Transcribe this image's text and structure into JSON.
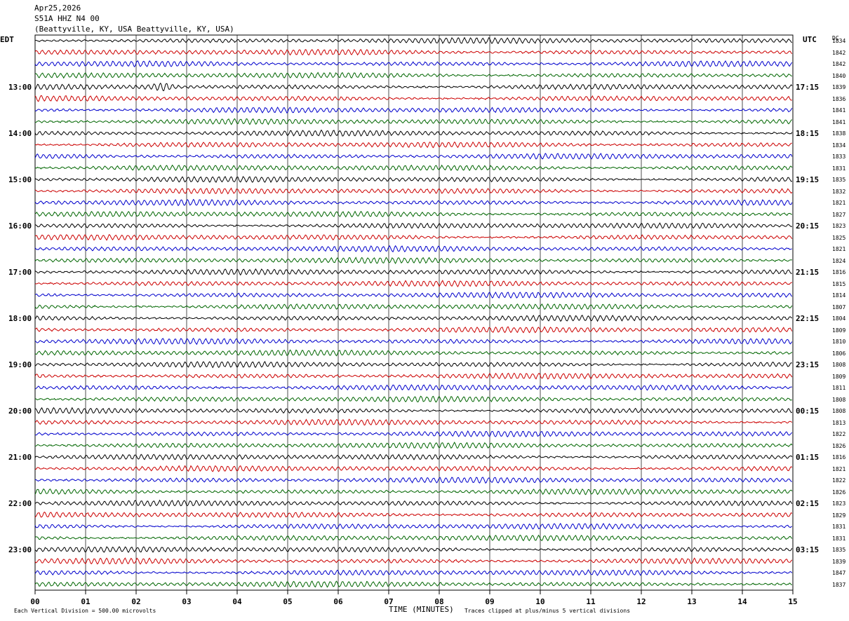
{
  "header": {
    "date": "Apr25,2026",
    "station": "S51A HHZ N4 00",
    "location": "(Beattyville, KY, USA Beattyville, KY, USA)"
  },
  "axes": {
    "left_tz": "EDT",
    "right_tz": "UTC",
    "right_col_label": "DC",
    "xlabel": "TIME (MINUTES)"
  },
  "footer": {
    "scale_note": "Each Vertical Division =  500.00 microvolts",
    "clip_note": "Traces clipped at plus/minus 5 vertical divisions"
  },
  "colors": {
    "line_colors": [
      "#000000",
      "#cc0000",
      "#0000cc",
      "#006600"
    ],
    "grid": "#000000"
  },
  "chart_data": {
    "type": "line",
    "title": "S51A HHZ N4 00",
    "xlabel": "TIME (MINUTES)",
    "xlim": [
      0,
      15
    ],
    "x_ticks": [
      "00",
      "01",
      "02",
      "03",
      "04",
      "05",
      "06",
      "07",
      "08",
      "09",
      "10",
      "11",
      "12",
      "13",
      "14",
      "15"
    ],
    "rows_per_hour": 4,
    "minutes_per_row": 15,
    "left_hour_labels": [
      "13:00",
      "14:00",
      "15:00",
      "16:00",
      "17:00",
      "18:00",
      "19:00",
      "20:00",
      "21:00",
      "22:00",
      "23:00"
    ],
    "right_hour_labels": [
      "17:15",
      "18:15",
      "19:15",
      "20:15",
      "21:15",
      "22:15",
      "23:15",
      "00:15",
      "01:15",
      "02:15",
      "03:15"
    ],
    "dc_offsets": [
      1834,
      1842,
      1842,
      1840,
      1839,
      1836,
      1841,
      1841,
      1838,
      1834,
      1833,
      1831,
      1835,
      1832,
      1821,
      1827,
      1823,
      1825,
      1821,
      1824,
      1816,
      1815,
      1814,
      1807,
      1804,
      1809,
      1810,
      1806,
      1808,
      1809,
      1811,
      1808,
      1808,
      1813,
      1822,
      1826,
      1816,
      1821,
      1822,
      1826,
      1823,
      1829,
      1831,
      1831,
      1835,
      1839,
      1847,
      1837
    ]
  }
}
